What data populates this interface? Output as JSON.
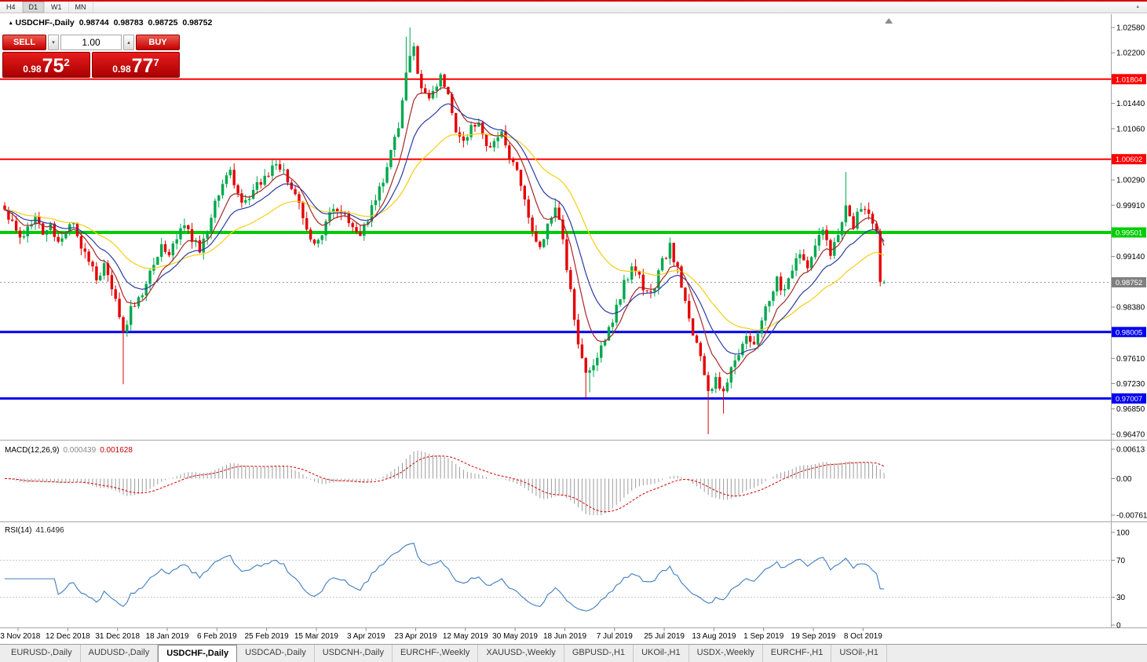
{
  "toolbar": {
    "timeframes": [
      "H4",
      "D1",
      "W1",
      "MN"
    ],
    "active_timeframe": "D1"
  },
  "icons": {
    "collapse_triangle": "▴",
    "small_up_triangle": "▴",
    "small_down_triangle": "▾"
  },
  "chart": {
    "title": {
      "symbol": "USDCHF-,Daily",
      "open": "0.98744",
      "high": "0.98783",
      "low": "0.98725",
      "close": "0.98752"
    }
  },
  "one_click": {
    "sell_label": "SELL",
    "buy_label": "BUY",
    "volume": "1.00",
    "sell_price": {
      "prefix": "0.98",
      "big": "75",
      "sup": "2"
    },
    "buy_price": {
      "prefix": "0.98",
      "big": "77",
      "sup": "7"
    }
  },
  "indicators": {
    "macd": {
      "label": "MACD(12,26,9)",
      "value_main": "0.000439",
      "value_signal": "0.001628",
      "axis": [
        "0.00613",
        "0.00",
        "-0.00761"
      ]
    },
    "rsi": {
      "label": "RSI(14)",
      "value": "41.6496",
      "axis": [
        "100",
        "70",
        "30",
        "0"
      ]
    }
  },
  "price_axis": {
    "labels": [
      "1.02580",
      "1.02200",
      "1.01440",
      "1.01060",
      "1.00290",
      "0.99910",
      "0.99140",
      "0.98380",
      "0.97610",
      "0.97230",
      "0.96850",
      "0.96470"
    ],
    "levels": [
      {
        "value": "1.01804",
        "price": 1.01804,
        "color": "#FF0000",
        "width": 2,
        "type": "resistance-line"
      },
      {
        "value": "1.00602",
        "price": 1.00602,
        "color": "#FF0000",
        "width": 2,
        "type": "resistance-line"
      },
      {
        "value": "0.99501",
        "price": 0.99501,
        "color": "#00CC00",
        "width": 4,
        "type": "support-line"
      },
      {
        "value": "0.98005",
        "price": 0.98005,
        "color": "#0000EE",
        "width": 3,
        "type": "support-line"
      },
      {
        "value": "0.97007",
        "price": 0.97007,
        "color": "#0000EE",
        "width": 3,
        "type": "support-line"
      }
    ],
    "current_price": {
      "value": "0.98752",
      "price": 0.98752,
      "color": "#808080"
    }
  },
  "dates": [
    "23 Nov 2018",
    "12 Dec 2018",
    "31 Dec 2018",
    "18 Jan 2019",
    "6 Feb 2019",
    "25 Feb 2019",
    "15 Mar 2019",
    "3 Apr 2019",
    "23 Apr 2019",
    "12 May 2019",
    "30 May 2019",
    "18 Jun 2019",
    "7 Jul 2019",
    "25 Jul 2019",
    "13 Aug 2019",
    "1 Sep 2019",
    "19 Sep 2019",
    "8 Oct 2019"
  ],
  "tabs": {
    "active_index": 2,
    "items": [
      "EURUSD-,Daily",
      "AUDUSD-,Daily",
      "USDCHF-,Daily",
      "USDCAD-,Daily",
      "USDCNH-,Daily",
      "EURCHF-,Weekly",
      "XAUUSD-,Weekly",
      "GBPUSD-,H1",
      "UKOil-,H1",
      "USDX-,Weekly",
      "EURCHF-,H1",
      "USOil-,H1"
    ],
    "separator": "|"
  },
  "chart_data": {
    "type": "candlestick",
    "symbol": "USDCHF",
    "timeframe": "Daily",
    "candle_count": 231,
    "visible_price_range": {
      "min": 0.9641,
      "max": 1.0271
    },
    "close_anchors": [
      [
        0,
        0.9985
      ],
      [
        2,
        0.9962
      ],
      [
        4,
        0.994
      ],
      [
        6,
        0.9958
      ],
      [
        8,
        0.9972
      ],
      [
        10,
        0.995
      ],
      [
        12,
        0.9962
      ],
      [
        14,
        0.9938
      ],
      [
        16,
        0.9952
      ],
      [
        18,
        0.9962
      ],
      [
        20,
        0.993
      ],
      [
        22,
        0.9912
      ],
      [
        24,
        0.9885
      ],
      [
        26,
        0.9898
      ],
      [
        28,
        0.987
      ],
      [
        30,
        0.982
      ],
      [
        31,
        0.9795
      ],
      [
        33,
        0.9835
      ],
      [
        35,
        0.985
      ],
      [
        37,
        0.9868
      ],
      [
        39,
        0.9905
      ],
      [
        41,
        0.9928
      ],
      [
        43,
        0.9918
      ],
      [
        45,
        0.9945
      ],
      [
        47,
        0.9962
      ],
      [
        49,
        0.9938
      ],
      [
        51,
        0.9925
      ],
      [
        53,
        0.9955
      ],
      [
        55,
        0.9995
      ],
      [
        57,
        1.003
      ],
      [
        59,
        1.004
      ],
      [
        61,
        1.0008
      ],
      [
        63,
        0.9992
      ],
      [
        65,
        1.001
      ],
      [
        67,
        1.0028
      ],
      [
        69,
        1.004
      ],
      [
        71,
        1.0052
      ],
      [
        73,
        1.0038
      ],
      [
        75,
        1.002
      ],
      [
        77,
        0.9988
      ],
      [
        79,
        0.995
      ],
      [
        81,
        0.9932
      ],
      [
        83,
        0.9948
      ],
      [
        85,
        0.9975
      ],
      [
        87,
        0.9988
      ],
      [
        89,
        0.9982
      ],
      [
        91,
        0.9958
      ],
      [
        93,
        0.994
      ],
      [
        95,
        0.9972
      ],
      [
        97,
        1.0002
      ],
      [
        99,
        1.003
      ],
      [
        101,
        1.0068
      ],
      [
        103,
        1.011
      ],
      [
        105,
        1.0185
      ],
      [
        106,
        1.0222
      ],
      [
        107,
        1.023
      ],
      [
        108,
        1.0185
      ],
      [
        109,
        1.016
      ],
      [
        111,
        1.0148
      ],
      [
        113,
        1.0175
      ],
      [
        114,
        1.019
      ],
      [
        116,
        1.0155
      ],
      [
        118,
        1.0102
      ],
      [
        120,
        1.0088
      ],
      [
        122,
        1.0108
      ],
      [
        124,
        1.0122
      ],
      [
        126,
        1.0075
      ],
      [
        128,
        1.0088
      ],
      [
        130,
        1.0098
      ],
      [
        132,
        1.0062
      ],
      [
        134,
        1.004
      ],
      [
        136,
        0.9995
      ],
      [
        138,
        0.9955
      ],
      [
        140,
        0.9928
      ],
      [
        142,
        0.9958
      ],
      [
        144,
        0.9992
      ],
      [
        146,
        0.9935
      ],
      [
        148,
        0.9862
      ],
      [
        150,
        0.9788
      ],
      [
        152,
        0.9738
      ],
      [
        154,
        0.9752
      ],
      [
        156,
        0.9775
      ],
      [
        158,
        0.9802
      ],
      [
        160,
        0.9838
      ],
      [
        162,
        0.9872
      ],
      [
        164,
        0.9898
      ],
      [
        166,
        0.9882
      ],
      [
        168,
        0.9856
      ],
      [
        170,
        0.9872
      ],
      [
        172,
        0.9905
      ],
      [
        174,
        0.9928
      ],
      [
        176,
        0.9892
      ],
      [
        178,
        0.9842
      ],
      [
        180,
        0.9798
      ],
      [
        182,
        0.9762
      ],
      [
        184,
        0.9705
      ],
      [
        186,
        0.9732
      ],
      [
        188,
        0.9712
      ],
      [
        190,
        0.9742
      ],
      [
        192,
        0.9772
      ],
      [
        194,
        0.98
      ],
      [
        196,
        0.9782
      ],
      [
        198,
        0.982
      ],
      [
        200,
        0.9848
      ],
      [
        202,
        0.9878
      ],
      [
        204,
        0.9862
      ],
      [
        206,
        0.9892
      ],
      [
        208,
        0.9918
      ],
      [
        210,
        0.9902
      ],
      [
        212,
        0.993
      ],
      [
        214,
        0.995
      ],
      [
        216,
        0.9922
      ],
      [
        218,
        0.9945
      ],
      [
        220,
        0.9985
      ],
      [
        222,
        0.9962
      ],
      [
        224,
        0.999
      ],
      [
        226,
        0.9972
      ],
      [
        228,
        0.9952
      ],
      [
        230,
        0.98752
      ]
    ],
    "wick_extremes": [
      {
        "i": 31,
        "low": 0.9722
      },
      {
        "i": 105,
        "high": 1.0244
      },
      {
        "i": 106,
        "high": 1.0258
      },
      {
        "i": 144,
        "high": 1.0001
      },
      {
        "i": 152,
        "low": 0.9702
      },
      {
        "i": 153,
        "low": 0.971
      },
      {
        "i": 184,
        "low": 0.9647
      },
      {
        "i": 188,
        "low": 0.9678
      },
      {
        "i": 220,
        "high": 1.0041
      }
    ],
    "final_candles": [
      {
        "i": 229,
        "o": 0.9952,
        "h": 0.99555,
        "l": 0.9869,
        "c": 0.9876
      },
      {
        "i": 230,
        "o": 0.98744,
        "h": 0.98783,
        "l": 0.98725,
        "c": 0.98752
      }
    ],
    "moving_averages": [
      {
        "name": "slow",
        "period": 34,
        "color": "#F5CE12"
      },
      {
        "name": "medium",
        "period": 16,
        "color": "#2B3BA5"
      },
      {
        "name": "fast",
        "period": 8,
        "color": "#A52828"
      }
    ],
    "macd": {
      "fast": 12,
      "slow": 26,
      "signal": 9,
      "axis_max": 0.00613,
      "axis_min": -0.00761
    },
    "rsi": {
      "period": 14,
      "levels": [
        70,
        30
      ]
    },
    "colors": {
      "up": "#00A84D",
      "down": "#E60000",
      "macd_hist": "#9C9C9C",
      "macd_signal": "#D40000",
      "rsi_line": "#3F7CC0",
      "level_green": "#00CC00",
      "level_blue": "#0000EE",
      "level_red": "#FF0000"
    }
  }
}
